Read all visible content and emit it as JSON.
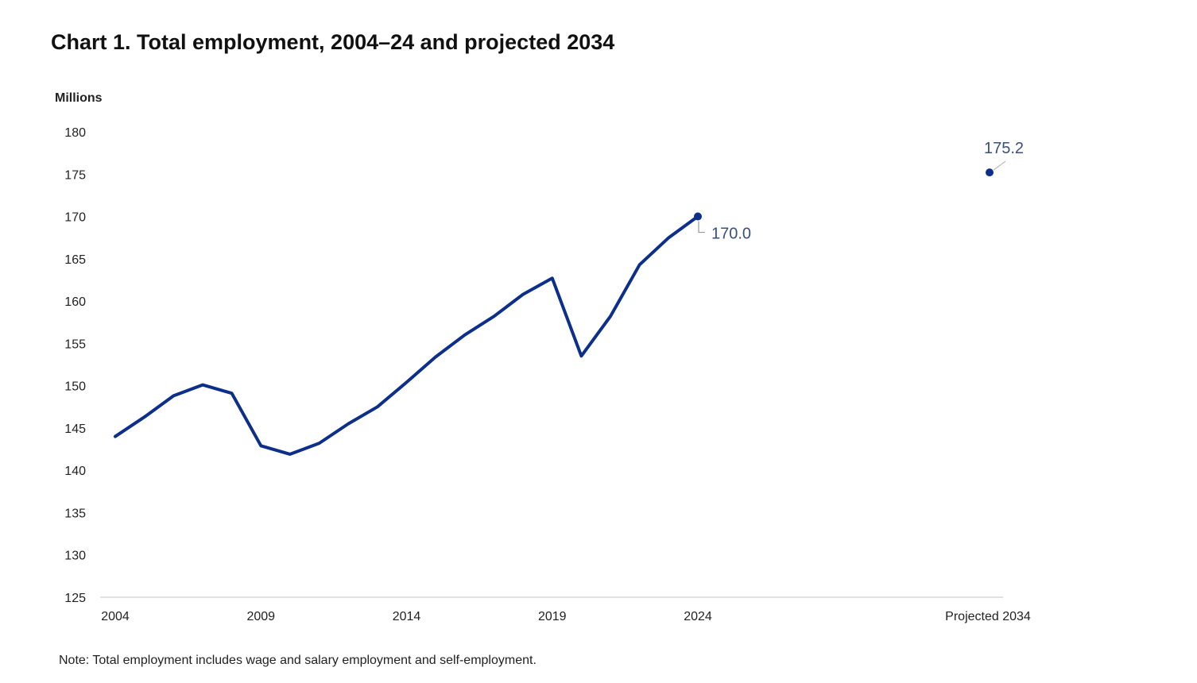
{
  "chart_data": {
    "type": "line",
    "title": "Chart 1. Total employment, 2004–24 and projected 2034",
    "ylabel": "Millions",
    "xlabel": "",
    "ylim": [
      125,
      180
    ],
    "yticks": [
      "180",
      "175",
      "170",
      "165",
      "160",
      "155",
      "150",
      "145",
      "140",
      "135",
      "130",
      "125"
    ],
    "xtick_labels": [
      "2004",
      "2009",
      "2014",
      "2019",
      "2024",
      "Projected 2034"
    ],
    "grid": false,
    "series": [
      {
        "name": "Total employment",
        "color": "#0b2f8a",
        "x": [
          2004,
          2005,
          2006,
          2007,
          2008,
          2009,
          2010,
          2011,
          2012,
          2013,
          2014,
          2015,
          2016,
          2017,
          2018,
          2019,
          2020,
          2021,
          2022,
          2023,
          2024
        ],
        "values": [
          144.0,
          146.3,
          148.8,
          150.1,
          149.1,
          142.9,
          141.9,
          143.2,
          145.5,
          147.5,
          150.4,
          153.4,
          156.0,
          158.2,
          160.8,
          162.7,
          153.5,
          158.2,
          164.3,
          167.5,
          170.0
        ]
      },
      {
        "name": "Projected",
        "color": "#0b2f8a",
        "x": [
          "Projected 2034"
        ],
        "values": [
          175.2
        ]
      }
    ],
    "annotations": [
      {
        "label": "170.0",
        "point": "2024",
        "value": 170.0
      },
      {
        "label": "175.2",
        "point": "Projected 2034",
        "value": 175.2
      }
    ],
    "note": "Note: Total employment includes wage and salary employment and self-employment."
  }
}
